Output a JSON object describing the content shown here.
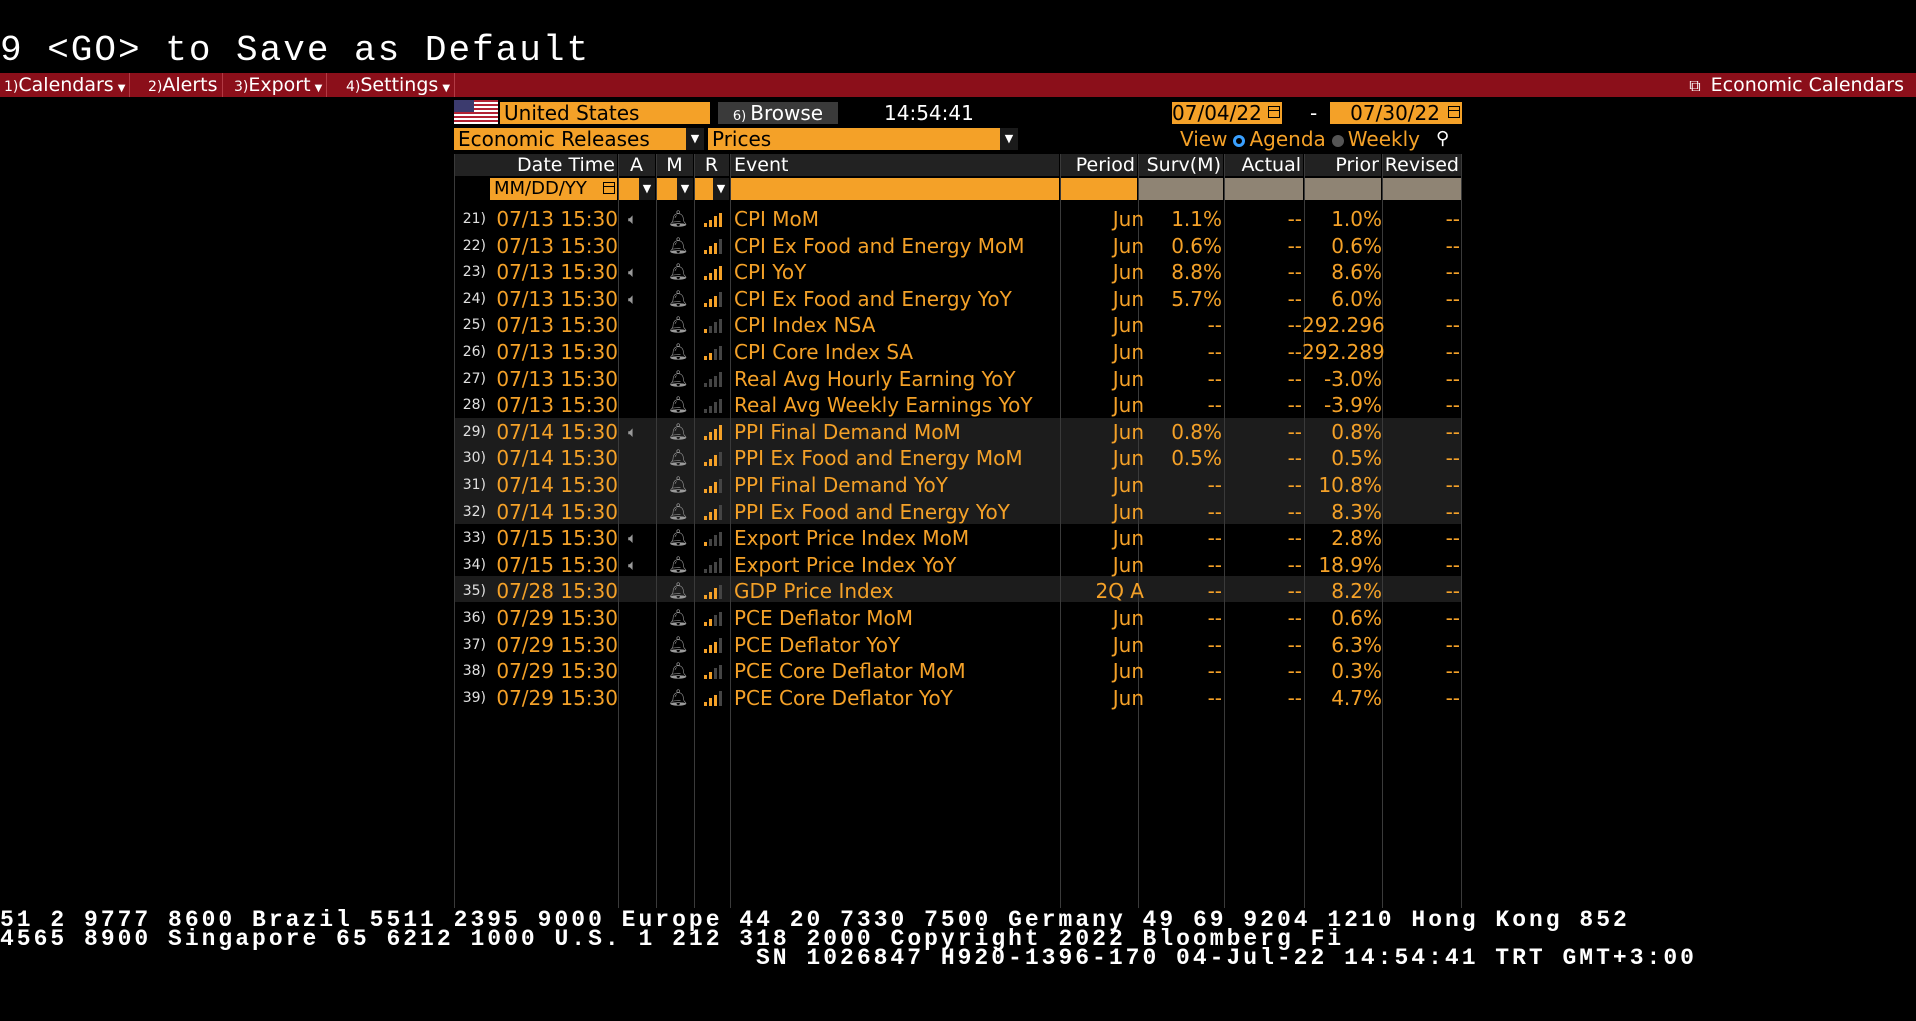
{
  "hint": "9 <GO> to Save as Default",
  "menu": {
    "items": [
      {
        "num": "1)",
        "label": "Calendars"
      },
      {
        "num": "2)",
        "label": "Alerts"
      },
      {
        "num": "3)",
        "label": "Export"
      },
      {
        "num": "4)",
        "label": "Settings"
      }
    ],
    "right_label": "Economic Calendars"
  },
  "controls": {
    "country": "United States",
    "browse_num": "6)",
    "browse": "Browse",
    "time": "14:54:41",
    "date_from": "07/04/22",
    "date_sep": "-",
    "date_to": "07/30/22",
    "category": "Economic Releases",
    "subcategory": "Prices",
    "view_label": "View",
    "view_agenda": "Agenda",
    "view_weekly": "Weekly"
  },
  "columns": {
    "datetime": "Date Time",
    "a": "A",
    "m": "M",
    "r": "R",
    "event": "Event",
    "period": "Period",
    "surv": "Surv(M)",
    "actual": "Actual",
    "prior": "Prior",
    "revised": "Revised"
  },
  "filter": {
    "date_placeholder": "MM/DD/YY"
  },
  "colors": {
    "accent": "#f4a128",
    "menubar": "#8b0f1a"
  },
  "rows": [
    {
      "idx": "21)",
      "dt": "07/13 15:30",
      "audio": true,
      "rel": 4,
      "event": "CPI MoM",
      "period": "Jun",
      "surv": "1.1%",
      "actual": "--",
      "prior": "1.0%",
      "revised": "--"
    },
    {
      "idx": "22)",
      "dt": "07/13 15:30",
      "audio": false,
      "rel": 3,
      "event": "CPI Ex Food and Energy MoM",
      "period": "Jun",
      "surv": "0.6%",
      "actual": "--",
      "prior": "0.6%",
      "revised": "--"
    },
    {
      "idx": "23)",
      "dt": "07/13 15:30",
      "audio": true,
      "rel": 4,
      "event": "CPI YoY",
      "period": "Jun",
      "surv": "8.8%",
      "actual": "--",
      "prior": "8.6%",
      "revised": "--"
    },
    {
      "idx": "24)",
      "dt": "07/13 15:30",
      "audio": true,
      "rel": 3,
      "event": "CPI Ex Food and Energy YoY",
      "period": "Jun",
      "surv": "5.7%",
      "actual": "--",
      "prior": "6.0%",
      "revised": "--"
    },
    {
      "idx": "25)",
      "dt": "07/13 15:30",
      "audio": false,
      "rel": 1,
      "event": "CPI Index NSA",
      "period": "Jun",
      "surv": "--",
      "actual": "--",
      "prior": "292.296",
      "revised": "--"
    },
    {
      "idx": "26)",
      "dt": "07/13 15:30",
      "audio": false,
      "rel": 2,
      "event": "CPI Core Index SA",
      "period": "Jun",
      "surv": "--",
      "actual": "--",
      "prior": "292.289",
      "revised": "--"
    },
    {
      "idx": "27)",
      "dt": "07/13 15:30",
      "audio": false,
      "rel": 0,
      "event": "Real Avg Hourly Earning YoY",
      "period": "Jun",
      "surv": "--",
      "actual": "--",
      "prior": "-3.0%",
      "revised": "--"
    },
    {
      "idx": "28)",
      "dt": "07/13 15:30",
      "audio": false,
      "rel": 0,
      "event": "Real Avg Weekly Earnings YoY",
      "period": "Jun",
      "surv": "--",
      "actual": "--",
      "prior": "-3.9%",
      "revised": "--"
    },
    {
      "idx": "29)",
      "dt": "07/14 15:30",
      "audio": true,
      "rel": 4,
      "event": "PPI Final Demand MoM",
      "period": "Jun",
      "surv": "0.8%",
      "actual": "--",
      "prior": "0.8%",
      "revised": "--"
    },
    {
      "idx": "30)",
      "dt": "07/14 15:30",
      "audio": false,
      "rel": 3,
      "event": "PPI Ex Food and Energy MoM",
      "period": "Jun",
      "surv": "0.5%",
      "actual": "--",
      "prior": "0.5%",
      "revised": "--"
    },
    {
      "idx": "31)",
      "dt": "07/14 15:30",
      "audio": false,
      "rel": 3,
      "event": "PPI Final Demand YoY",
      "period": "Jun",
      "surv": "--",
      "actual": "--",
      "prior": "10.8%",
      "revised": "--"
    },
    {
      "idx": "32)",
      "dt": "07/14 15:30",
      "audio": false,
      "rel": 3,
      "event": "PPI Ex Food and Energy YoY",
      "period": "Jun",
      "surv": "--",
      "actual": "--",
      "prior": "8.3%",
      "revised": "--"
    },
    {
      "idx": "33)",
      "dt": "07/15 15:30",
      "audio": true,
      "rel": 1,
      "event": "Export Price Index MoM",
      "period": "Jun",
      "surv": "--",
      "actual": "--",
      "prior": "2.8%",
      "revised": "--"
    },
    {
      "idx": "34)",
      "dt": "07/15 15:30",
      "audio": true,
      "rel": 0,
      "event": "Export Price Index YoY",
      "period": "Jun",
      "surv": "--",
      "actual": "--",
      "prior": "18.9%",
      "revised": "--"
    },
    {
      "idx": "35)",
      "dt": "07/28 15:30",
      "audio": false,
      "rel": 3,
      "event": "GDP Price Index",
      "period": "2Q A",
      "surv": "--",
      "actual": "--",
      "prior": "8.2%",
      "revised": "--"
    },
    {
      "idx": "36)",
      "dt": "07/29 15:30",
      "audio": false,
      "rel": 2,
      "event": "PCE Deflator MoM",
      "period": "Jun",
      "surv": "--",
      "actual": "--",
      "prior": "0.6%",
      "revised": "--"
    },
    {
      "idx": "37)",
      "dt": "07/29 15:30",
      "audio": false,
      "rel": 3,
      "event": "PCE Deflator YoY",
      "period": "Jun",
      "surv": "--",
      "actual": "--",
      "prior": "6.3%",
      "revised": "--"
    },
    {
      "idx": "38)",
      "dt": "07/29 15:30",
      "audio": false,
      "rel": 2,
      "event": "PCE Core Deflator MoM",
      "period": "Jun",
      "surv": "--",
      "actual": "--",
      "prior": "0.3%",
      "revised": "--"
    },
    {
      "idx": "39)",
      "dt": "07/29 15:30",
      "audio": false,
      "rel": 3,
      "event": "PCE Core Deflator YoY",
      "period": "Jun",
      "surv": "--",
      "actual": "--",
      "prior": "4.7%",
      "revised": "--"
    }
  ],
  "footer": {
    "line1": "51 2 9777 8600 Brazil 5511 2395 9000 Europe 44 20 7330 7500 Germany 49 69 9204 1210 Hong Kong 852",
    "line2": " 4565 8900       Singapore 65 6212 1000       U.S. 1 212 318 2000       Copyright 2022 Bloomberg Fi",
    "line3": "SN 1026847 H920-1396-170 04-Jul-22 14:54:41 TRT  GMT+3:00"
  }
}
